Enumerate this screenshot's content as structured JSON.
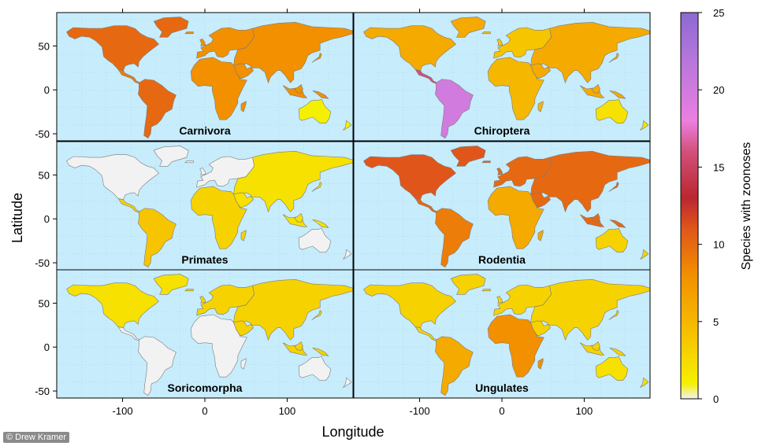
{
  "chart_data": {
    "type": "map",
    "xlabel": "Longitude",
    "ylabel": "Latitude",
    "x_ticks": [
      -100,
      0,
      100
    ],
    "y_ticks": [
      -50,
      0,
      50
    ],
    "xlim": [
      -180,
      180
    ],
    "ylim": [
      -58,
      88
    ],
    "colorbar": {
      "label": "Species with zoonoses",
      "min": 0,
      "max": 25,
      "ticks": [
        0,
        5,
        10,
        15,
        20,
        25
      ],
      "stops": [
        {
          "value": 0,
          "color": "#f2f2f2"
        },
        {
          "value": 1,
          "color": "#f5f000"
        },
        {
          "value": 4,
          "color": "#f7c400"
        },
        {
          "value": 8,
          "color": "#f29000"
        },
        {
          "value": 11,
          "color": "#e0561a"
        },
        {
          "value": 13,
          "color": "#bb2630"
        },
        {
          "value": 16,
          "color": "#d2507a"
        },
        {
          "value": 18,
          "color": "#ec7fe0"
        },
        {
          "value": 22,
          "color": "#b576db"
        },
        {
          "value": 25,
          "color": "#8c69d2"
        }
      ]
    },
    "ocean_color": "#c7ecfb",
    "panels": [
      {
        "title": "Carnivora",
        "regions": [
          {
            "name": "North America",
            "value": 10
          },
          {
            "name": "Central America",
            "value": 9
          },
          {
            "name": "South America",
            "value": 10
          },
          {
            "name": "Europe",
            "value": 8
          },
          {
            "name": "Africa",
            "value": 8
          },
          {
            "name": "Asia",
            "value": 8
          },
          {
            "name": "Australia",
            "value": 1
          }
        ]
      },
      {
        "title": "Chiroptera",
        "regions": [
          {
            "name": "North America",
            "value": 6
          },
          {
            "name": "Central America",
            "value": 16
          },
          {
            "name": "South America",
            "value": 20
          },
          {
            "name": "Europe",
            "value": 4
          },
          {
            "name": "Africa",
            "value": 5
          },
          {
            "name": "Asia",
            "value": 6
          },
          {
            "name": "Australia",
            "value": 2
          }
        ]
      },
      {
        "title": "Primates",
        "regions": [
          {
            "name": "North America",
            "value": 0
          },
          {
            "name": "Central America",
            "value": 3
          },
          {
            "name": "South America",
            "value": 4
          },
          {
            "name": "Europe",
            "value": 0
          },
          {
            "name": "Africa",
            "value": 3
          },
          {
            "name": "Asia",
            "value": 2
          },
          {
            "name": "Australia",
            "value": 0
          }
        ]
      },
      {
        "title": "Rodentia",
        "regions": [
          {
            "name": "North America",
            "value": 11
          },
          {
            "name": "Central America",
            "value": 10
          },
          {
            "name": "South America",
            "value": 9
          },
          {
            "name": "Europe",
            "value": 10
          },
          {
            "name": "Africa",
            "value": 6
          },
          {
            "name": "Asia",
            "value": 10
          },
          {
            "name": "Australia",
            "value": 3
          }
        ]
      },
      {
        "title": "Soricomorpha",
        "regions": [
          {
            "name": "North America",
            "value": 2
          },
          {
            "name": "Central America",
            "value": 0
          },
          {
            "name": "South America",
            "value": 0
          },
          {
            "name": "Europe",
            "value": 3
          },
          {
            "name": "Africa",
            "value": 0
          },
          {
            "name": "Asia",
            "value": 3
          },
          {
            "name": "Australia",
            "value": 0
          }
        ]
      },
      {
        "title": "Ungulates",
        "regions": [
          {
            "name": "North America",
            "value": 3
          },
          {
            "name": "Central America",
            "value": 3
          },
          {
            "name": "South America",
            "value": 6
          },
          {
            "name": "Europe",
            "value": 3
          },
          {
            "name": "Africa",
            "value": 8
          },
          {
            "name": "Asia",
            "value": 3
          },
          {
            "name": "Australia",
            "value": 2
          }
        ]
      }
    ]
  },
  "credit": "© Drew Kramer"
}
